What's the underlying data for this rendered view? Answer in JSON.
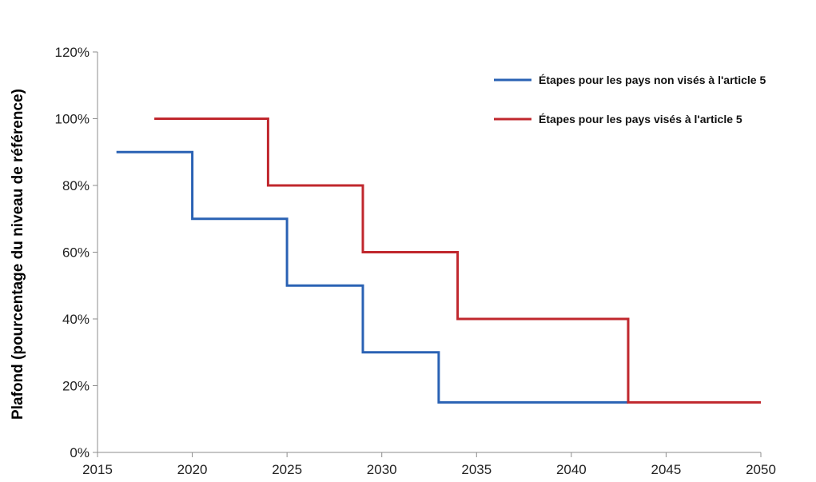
{
  "chart_data": {
    "type": "line",
    "step": true,
    "title": "",
    "xlabel": "",
    "ylabel": "Plafond (pourcentage du niveau de référence)",
    "x_ticks": [
      "2015",
      "2020",
      "2025",
      "2030",
      "2035",
      "2040",
      "2045",
      "2050"
    ],
    "y_ticks": [
      "0%",
      "20%",
      "40%",
      "60%",
      "80%",
      "100%",
      "120%"
    ],
    "xlim": [
      2015,
      2050
    ],
    "ylim": [
      0,
      120
    ],
    "grid": false,
    "legend_position": "top-right",
    "series": [
      {
        "name": "Étapes pour les pays non visés à l'article 5",
        "color": "#2a62b4",
        "points": [
          [
            2016,
            90
          ],
          [
            2020,
            90
          ],
          [
            2020,
            70
          ],
          [
            2025,
            70
          ],
          [
            2025,
            50
          ],
          [
            2029,
            50
          ],
          [
            2029,
            30
          ],
          [
            2033,
            30
          ],
          [
            2033,
            15
          ],
          [
            2043,
            15
          ]
        ]
      },
      {
        "name": "Étapes pour les pays visés à l'article 5",
        "color": "#c0272d",
        "points": [
          [
            2018,
            100
          ],
          [
            2024,
            100
          ],
          [
            2024,
            80
          ],
          [
            2029,
            80
          ],
          [
            2029,
            60
          ],
          [
            2034,
            60
          ],
          [
            2034,
            40
          ],
          [
            2043,
            40
          ],
          [
            2043,
            15
          ],
          [
            2050,
            15
          ]
        ]
      }
    ]
  }
}
